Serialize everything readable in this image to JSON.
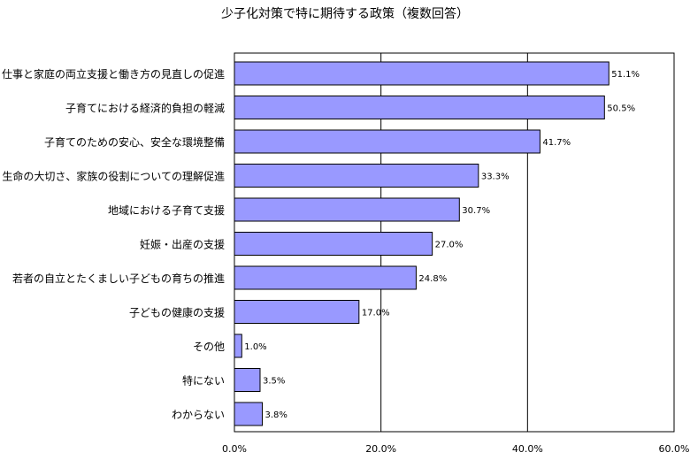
{
  "chart_data": {
    "type": "bar",
    "orientation": "horizontal",
    "title": "少子化対策で特に期待する政策（複数回答）",
    "categories": [
      "仕事と家庭の両立支援と働き方の見直しの促進",
      "子育てにおける経済的負担の軽減",
      "子育てのための安心、安全な環境整備",
      "生命の大切さ、家族の役割についての理解促進",
      "地域における子育て支援",
      "妊娠・出産の支援",
      "若者の自立とたくましい子どもの育ちの推進",
      "子どもの健康の支援",
      "その他",
      "特にない",
      "わからない"
    ],
    "values": [
      51.1,
      50.5,
      41.7,
      33.3,
      30.7,
      27.0,
      24.8,
      17.0,
      1.0,
      3.5,
      3.8
    ],
    "value_labels": [
      "51.1%",
      "50.5%",
      "41.7%",
      "33.3%",
      "30.7%",
      "27.0%",
      "24.8%",
      "17.0%",
      "1.0%",
      "3.5%",
      "3.8%"
    ],
    "xlim": [
      0,
      60
    ],
    "ticks": [
      0,
      20,
      40,
      60
    ],
    "tick_labels": [
      "0.0%",
      "20.0%",
      "40.0%",
      "60.0%"
    ],
    "xlabel": "",
    "ylabel": "",
    "grid": true,
    "legend": "none",
    "colors": {
      "bar": "#9999ff",
      "bar_edge": "#000000",
      "grid": "#000000"
    }
  }
}
